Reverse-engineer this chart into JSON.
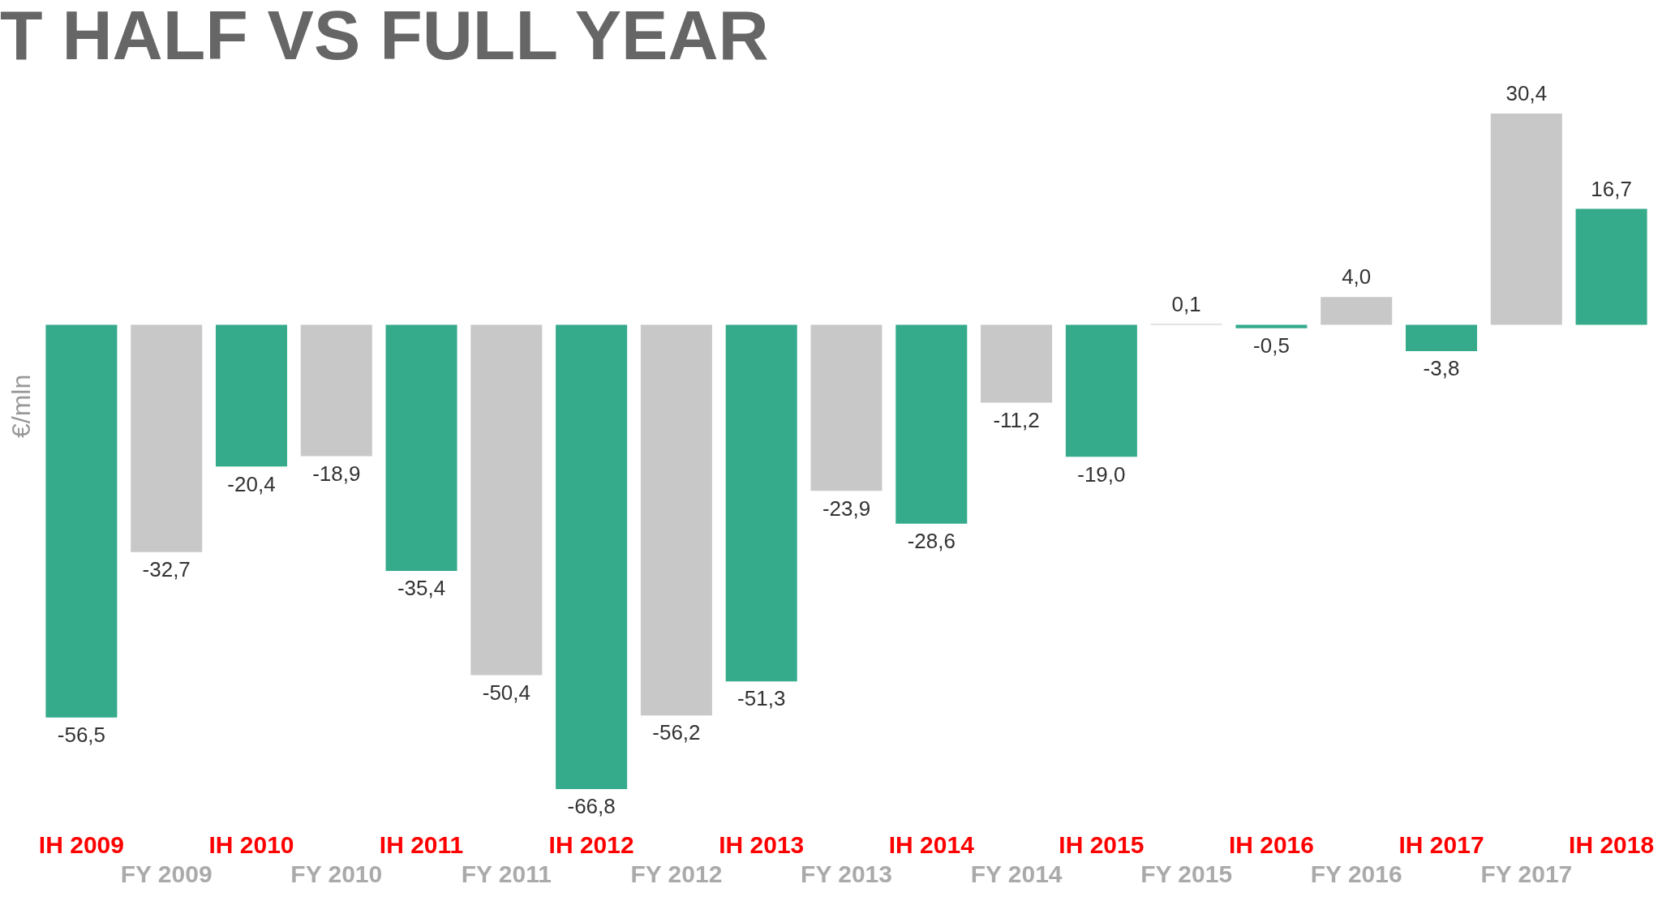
{
  "chart_data": {
    "type": "bar",
    "title": "T HALF VS FULL YEAR",
    "ylabel": "€/mln",
    "categories": [
      "IH 2009",
      "FY 2009",
      "IH 2010",
      "FY 2010",
      "IH 2011",
      "FY 2011",
      "IH 2012",
      "FY 2012",
      "IH 2013",
      "FY 2013",
      "IH 2014",
      "FY 2014",
      "IH 2015",
      "FY 2015",
      "IH 2016",
      "FY 2016",
      "IH 2017",
      "FY 2017",
      "IH 2018"
    ],
    "values": [
      -56.5,
      -32.7,
      -20.4,
      -18.9,
      -35.4,
      -50.4,
      -66.8,
      -56.2,
      -51.3,
      -23.9,
      -28.6,
      -11.2,
      -19.0,
      0.1,
      -0.5,
      4.0,
      -3.8,
      30.4,
      16.7
    ],
    "value_labels": [
      "-56,5",
      "-32,7",
      "-20,4",
      "-18,9",
      "-35,4",
      "-50,4",
      "-66,8",
      "-56,2",
      "-51,3",
      "-23,9",
      "-28,6",
      "-11,2",
      "-19,0",
      "0,1",
      "-0,5",
      "4,0",
      "-3,8",
      "30,4",
      "16,7"
    ],
    "colors": [
      "#35ab8c",
      "#c8c8c8",
      "#35ab8c",
      "#c8c8c8",
      "#35ab8c",
      "#c8c8c8",
      "#35ab8c",
      "#c8c8c8",
      "#35ab8c",
      "#c8c8c8",
      "#35ab8c",
      "#c8c8c8",
      "#35ab8c",
      "#c8c8c8",
      "#35ab8c",
      "#c8c8c8",
      "#35ab8c",
      "#c8c8c8",
      "#35ab8c"
    ],
    "relative": false,
    "grid": false,
    "legend": false
  }
}
